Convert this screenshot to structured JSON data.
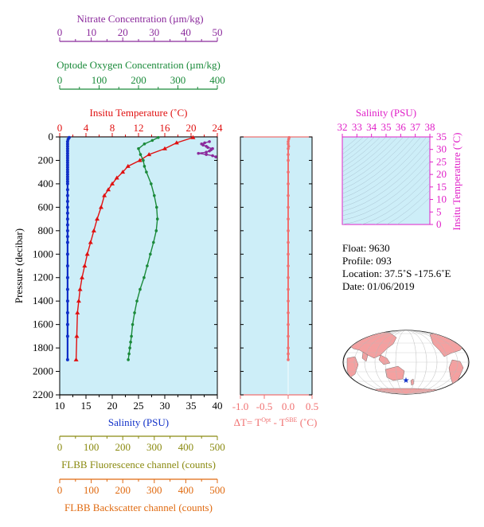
{
  "colors": {
    "panel_bg": "#cdeef8",
    "nitrate": "#8b2a9c",
    "oxygen": "#1a8a3a",
    "temperature": "#e01010",
    "salinity": "#1030c8",
    "fluorescence": "#8a8a10",
    "backscatter": "#e06a10",
    "delta": "#f07070",
    "tsframe": "#e020c8",
    "axis": "#000000",
    "land": "#f4a0a0",
    "ocean": "#ffffff"
  },
  "axes": {
    "nitrate": {
      "label": "Nitrate Concentration (µm/kg)",
      "ticks": [
        "0",
        "10",
        "20",
        "30",
        "40",
        "50"
      ],
      "range": [
        0,
        50
      ]
    },
    "oxygen": {
      "label": "Optode Oxygen Concentration (µm/kg)",
      "ticks": [
        "0",
        "100",
        "200",
        "300",
        "400"
      ],
      "range": [
        0,
        400
      ]
    },
    "temperature": {
      "label": "Insitu Temperature (˚C)",
      "ticks": [
        "0",
        "4",
        "8",
        "12",
        "16",
        "20",
        "24"
      ],
      "range": [
        0,
        24
      ]
    },
    "salinity": {
      "label": "Salinity (PSU)",
      "ticks": [
        "10",
        "15",
        "20",
        "25",
        "30",
        "35",
        "40"
      ],
      "range": [
        10,
        40
      ]
    },
    "pressure": {
      "label": "Pressure (decibar)",
      "ticks": [
        "0",
        "200",
        "400",
        "600",
        "800",
        "1000",
        "1200",
        "1400",
        "1600",
        "1800",
        "2000",
        "2200"
      ],
      "range": [
        0,
        2200
      ]
    },
    "fluorescence": {
      "label": "FLBB Fluorescence channel (counts)",
      "ticks": [
        "0",
        "100",
        "200",
        "300",
        "400",
        "500"
      ],
      "range": [
        0,
        500
      ]
    },
    "backscatter": {
      "label": "FLBB Backscatter channel (counts)",
      "ticks": [
        "0",
        "100",
        "200",
        "300",
        "400",
        "500"
      ],
      "range": [
        0,
        500
      ]
    },
    "delta": {
      "label_prefix": "ΔT= T",
      "label_sup1": "Opt",
      "label_mid": " - T",
      "label_sup2": "SBE",
      "label_suffix": " (˚C)",
      "ticks": [
        "-1.0",
        "-0.5",
        "0.0",
        "0.5"
      ],
      "range": [
        -1.0,
        0.5
      ]
    },
    "ts_salinity": {
      "label": "Salinity (PSU)",
      "ticks": [
        "32",
        "33",
        "34",
        "35",
        "36",
        "37",
        "38"
      ],
      "range": [
        32,
        38
      ]
    },
    "ts_temperature": {
      "label": "Insitu Temperature (˚C)",
      "ticks": [
        "0",
        "5",
        "10",
        "15",
        "20",
        "25",
        "30",
        "35"
      ],
      "range": [
        0,
        35
      ]
    }
  },
  "info": {
    "float": "Float:  9630",
    "profile": "Profile:  093",
    "location": "Location:  37.5˚S  -175.6˚E",
    "date": "Date:  01/06/2019"
  },
  "chart_data": [
    {
      "type": "line",
      "panel": "main-profile",
      "series": [
        {
          "name": "Insitu Temperature",
          "axis": "temperature",
          "x": [
            20.3,
            17.8,
            16.0,
            13.6,
            12.2,
            10.4,
            9.6,
            8.7,
            8.0,
            7.4,
            6.8,
            6.3,
            5.7,
            5.2,
            4.7,
            4.2,
            3.8,
            3.4,
            3.1,
            2.9,
            2.7,
            2.6,
            2.5
          ],
          "y": [
            5,
            50,
            100,
            150,
            200,
            250,
            300,
            350,
            400,
            450,
            500,
            600,
            700,
            800,
            900,
            1000,
            1100,
            1200,
            1300,
            1400,
            1500,
            1700,
            1900
          ]
        },
        {
          "name": "Optode Oxygen",
          "axis": "oxygen",
          "x": [
            250,
            235,
            215,
            200,
            205,
            212,
            215,
            220,
            232,
            240,
            246,
            248,
            245,
            238,
            230,
            222,
            214,
            204,
            196,
            190,
            185,
            182,
            180,
            178,
            176,
            174
          ],
          "y": [
            5,
            30,
            60,
            100,
            150,
            200,
            250,
            300,
            400,
            500,
            600,
            700,
            800,
            900,
            1000,
            1100,
            1200,
            1300,
            1400,
            1500,
            1600,
            1700,
            1750,
            1800,
            1850,
            1900
          ]
        },
        {
          "name": "Nitrate",
          "axis": "nitrate",
          "x": [
            47.5,
            46.0,
            45.0,
            45.5,
            46.5,
            47.0,
            48.5,
            48.0,
            47.5,
            46.5,
            44.0,
            46.5,
            48.5,
            49.5
          ],
          "y": [
            40,
            50,
            60,
            70,
            80,
            90,
            100,
            110,
            120,
            130,
            140,
            150,
            160,
            170
          ]
        },
        {
          "name": "Salinity",
          "axis": "salinity",
          "x": [
            11.8,
            11.6,
            11.5,
            11.5,
            11.5,
            11.5,
            11.5,
            11.5,
            11.5,
            11.5,
            11.5,
            11.5,
            11.5,
            11.5,
            11.5,
            11.5,
            11.5,
            11.5,
            11.5,
            11.5,
            11.5,
            11.5,
            11.5,
            11.5,
            11.5,
            11.5,
            11.5,
            11.5,
            11.5,
            11.5,
            11.5,
            11.5,
            11.5,
            11.5,
            11.5,
            11.5,
            11.5,
            11.5,
            11.5,
            11.5
          ],
          "y": [
            5,
            20,
            40,
            60,
            80,
            100,
            120,
            140,
            160,
            180,
            200,
            220,
            240,
            260,
            280,
            300,
            320,
            340,
            360,
            380,
            400,
            450,
            500,
            550,
            600,
            650,
            700,
            750,
            800,
            850,
            900,
            1000,
            1100,
            1200,
            1300,
            1400,
            1500,
            1600,
            1700,
            1900
          ]
        }
      ]
    },
    {
      "type": "line",
      "panel": "delta-temperature",
      "series": [
        {
          "name": "ΔT",
          "axis": "delta",
          "x": [
            0.02,
            0.01,
            0.0,
            0.0,
            0.01,
            0.0,
            0.0,
            0.0,
            0.0,
            0.0,
            0.0,
            0.0,
            0.0,
            0.0,
            0.0,
            0.0,
            0.0,
            0.0,
            0.0,
            0.0,
            0.0,
            0.0,
            0.0,
            0.0,
            0.0,
            0.0
          ],
          "y": [
            5,
            20,
            40,
            60,
            80,
            100,
            150,
            200,
            300,
            400,
            500,
            600,
            700,
            800,
            900,
            1000,
            1100,
            1200,
            1300,
            1400,
            1500,
            1600,
            1700,
            1800,
            1850,
            1900
          ]
        }
      ]
    },
    {
      "type": "scatter",
      "panel": "ts-diagram",
      "xlabel": "Salinity (PSU)",
      "ylabel": "Insitu Temperature (˚C)",
      "xlim": [
        32,
        38
      ],
      "ylim": [
        0,
        35
      ],
      "series": []
    }
  ],
  "map": {
    "marker": "float-position",
    "lon": -175.6,
    "lat": -37.5
  }
}
